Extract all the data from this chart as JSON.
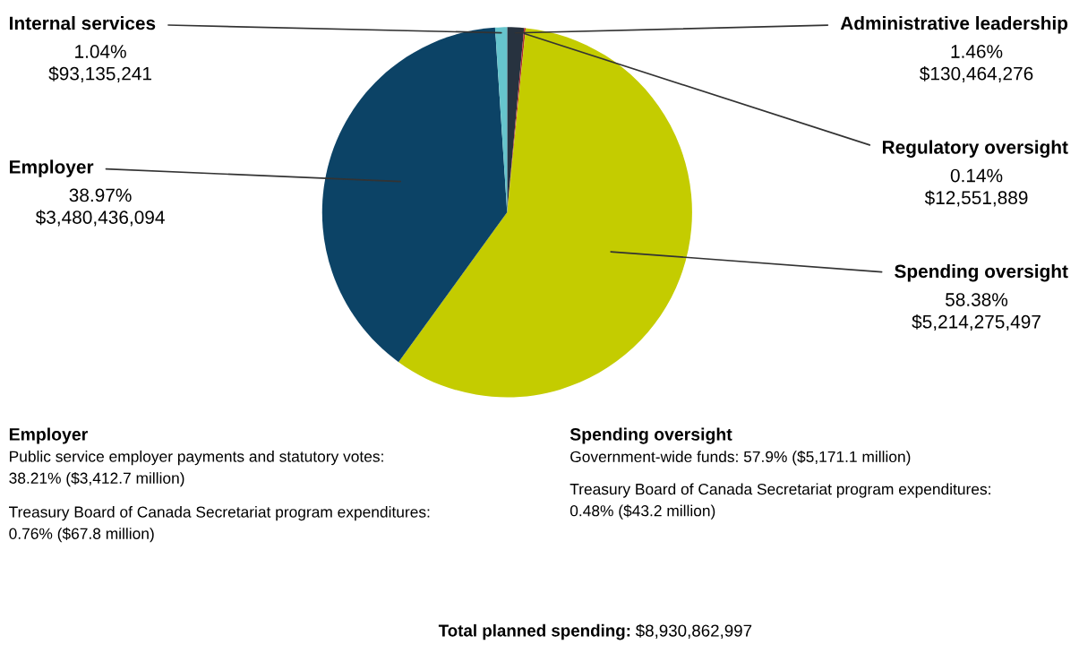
{
  "chart_data": {
    "type": "pie",
    "categories": [
      "Administrative leadership",
      "Regulatory oversight",
      "Spending oversight",
      "Employer",
      "Internal services"
    ],
    "values": [
      1.46,
      0.14,
      58.38,
      38.97,
      1.04
    ],
    "value_labels": [
      "1.46%\n$130,464,276",
      "0.14%\n$12,551,889",
      "58.38%\n$5,214,275,497",
      "38.97%\n$3,480,436,094",
      "1.04%\n$93,135,241"
    ],
    "colors": [
      "#27323f",
      "#b0312f",
      "#c4cc00",
      "#0c4366",
      "#66c4cc"
    ],
    "annotations": [
      "Employer",
      "Public service employer payments and statutory votes:\n38.21% ($3,412.7 million)",
      "Treasury Board of Canada Secretariat program expenditures:\n0.76% ($67.8 million)",
      "Spending oversight",
      "Government-wide funds: 57.9% ($5,171.1 million)",
      "Treasury Board of Canada Secretariat program expenditures:\n0.48% ($43.2 million)",
      "Total planned spending:",
      "$8,930,862,997"
    ]
  }
}
